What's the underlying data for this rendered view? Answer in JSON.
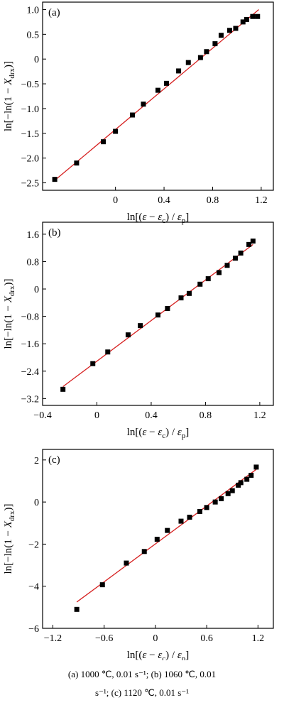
{
  "chart_data": [
    {
      "type": "scatter",
      "panel_label": "(a)",
      "xlabel": "ln[(ε − εc) / εp]",
      "ylabel": "ln[−ln(1 − Xdrx)]",
      "xlim": [
        -0.6,
        1.3
      ],
      "ylim": [
        -2.65,
        1.15
      ],
      "xticks": [
        0,
        0.4,
        0.8,
        1.2
      ],
      "xtick_labels": [
        "0",
        "0.4",
        "0.8",
        "1.2"
      ],
      "yticks": [
        -2.5,
        -2.0,
        -1.5,
        -1.0,
        -0.5,
        0,
        0.5,
        1.0
      ],
      "ytick_labels": [
        "−2.5",
        "−2.0",
        "−1.5",
        "−1.0",
        "−0.5",
        "0",
        "0.5",
        "1.0"
      ],
      "grid": false,
      "fit_line": {
        "x": [
          -0.5,
          1.18
        ],
        "y": [
          -2.45,
          1.0
        ]
      },
      "series": [
        {
          "marker": "square",
          "x": [
            -0.5,
            -0.32,
            -0.1,
            0.0,
            0.14,
            0.23,
            0.35,
            0.42,
            0.52,
            0.6,
            0.7,
            0.75,
            0.82,
            0.87,
            0.94,
            0.99,
            1.05,
            1.08,
            1.13,
            1.17
          ],
          "y": [
            -2.43,
            -2.1,
            -1.67,
            -1.46,
            -1.13,
            -0.91,
            -0.63,
            -0.49,
            -0.24,
            -0.07,
            0.03,
            0.15,
            0.31,
            0.48,
            0.58,
            0.62,
            0.75,
            0.8,
            0.86,
            0.86
          ]
        }
      ]
    },
    {
      "type": "scatter",
      "panel_label": "(b)",
      "xlabel": "ln[(ε − εc) / εp]",
      "ylabel": "ln[−ln(1 − Xdrx)]",
      "xlim": [
        -0.4,
        1.3
      ],
      "ylim": [
        -3.4,
        1.95
      ],
      "xticks": [
        -0.4,
        0,
        0.4,
        0.8,
        1.2
      ],
      "xtick_labels": [
        "−0.4",
        "0",
        "0.4",
        "0.8",
        "1.2"
      ],
      "yticks": [
        -3.2,
        -2.4,
        -1.6,
        -0.8,
        0,
        0.8,
        1.6
      ],
      "ytick_labels": [
        "−3.2",
        "−2.4",
        "−1.6",
        "−0.8",
        "0",
        "0.8",
        "1.6"
      ],
      "grid": false,
      "fit_line": {
        "x": [
          -0.25,
          1.15
        ],
        "y": [
          -2.85,
          1.3
        ]
      },
      "series": [
        {
          "marker": "square",
          "x": [
            -0.25,
            -0.03,
            0.08,
            0.23,
            0.32,
            0.45,
            0.52,
            0.62,
            0.68,
            0.76,
            0.82,
            0.9,
            0.96,
            1.02,
            1.06,
            1.12,
            1.15
          ],
          "y": [
            -2.93,
            -2.18,
            -1.84,
            -1.34,
            -1.07,
            -0.76,
            -0.57,
            -0.26,
            -0.13,
            0.14,
            0.3,
            0.48,
            0.69,
            0.9,
            1.05,
            1.3,
            1.4
          ]
        }
      ]
    },
    {
      "type": "scatter",
      "panel_label": "(c)",
      "xlabel": "ln[(ε − εc) / εp]",
      "ylabel": "ln[−ln(1 − Xdrx)]",
      "xlim": [
        -1.32,
        1.38
      ],
      "ylim": [
        -6.0,
        2.5
      ],
      "xticks": [
        -1.2,
        -0.6,
        0,
        0.6,
        1.2
      ],
      "xtick_labels": [
        "−1.2",
        "−0.6",
        "0",
        "0.6",
        "1.2"
      ],
      "yticks": [
        -6,
        -4,
        -2,
        0,
        2
      ],
      "ytick_labels": [
        "−6",
        "−4",
        "−2",
        "0",
        "2"
      ],
      "grid": false,
      "fit_line": {
        "x": [
          -0.92,
          1.18
        ],
        "y": [
          -4.75,
          1.55
        ]
      },
      "series": [
        {
          "marker": "square",
          "x": [
            -0.92,
            -0.62,
            -0.34,
            -0.13,
            0.02,
            0.14,
            0.3,
            0.4,
            0.52,
            0.6,
            0.7,
            0.77,
            0.85,
            0.9,
            0.97,
            1.0,
            1.07,
            1.12,
            1.18
          ],
          "y": [
            -5.1,
            -3.93,
            -2.9,
            -2.35,
            -1.77,
            -1.35,
            -0.91,
            -0.72,
            -0.45,
            -0.26,
            0.0,
            0.16,
            0.4,
            0.54,
            0.8,
            0.92,
            1.08,
            1.27,
            1.66
          ]
        }
      ]
    }
  ],
  "caption": {
    "line1": "(a) 1000 ℃, 0.01 s⁻¹; (b) 1060 ℃, 0.01",
    "line2": "s⁻¹; (c) 1120 ℃, 0.01 s⁻¹"
  },
  "colors": {
    "fit_line": "#d62020",
    "marker": "#000000",
    "axis": "#000000"
  }
}
